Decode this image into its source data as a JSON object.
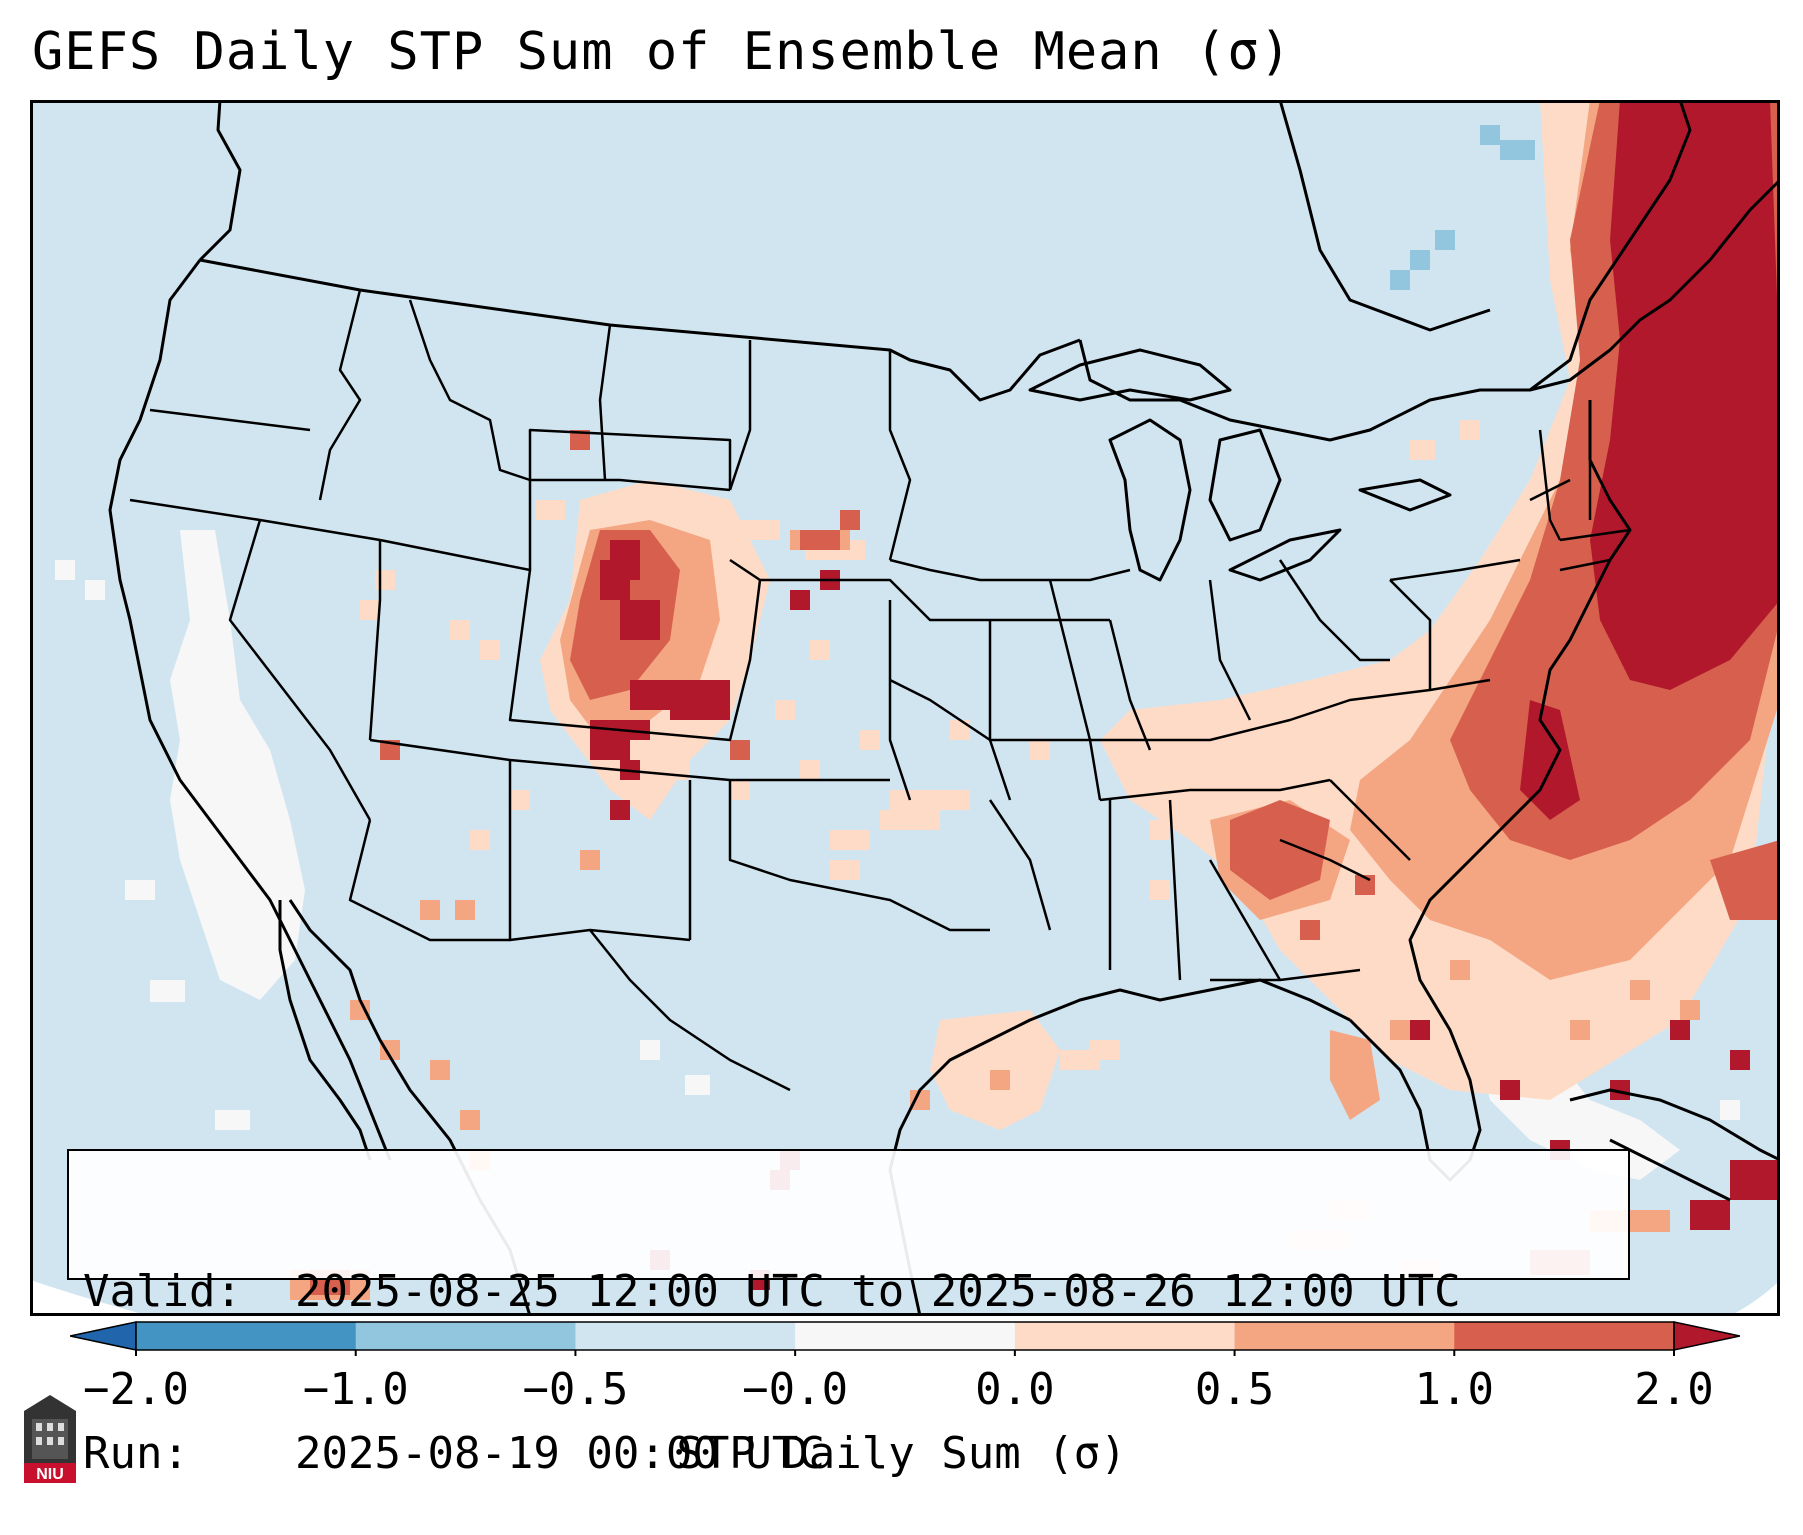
{
  "title": "GEFS Daily STP Sum of Ensemble Mean (σ)",
  "info": {
    "valid_label": "Valid:",
    "valid_value": "2025-08-25 12:00 UTC to 2025-08-26 12:00 UTC",
    "run_label": "Run:",
    "run_value": "2025-08-19 00:00 UTC"
  },
  "colorbar": {
    "label": "STP Daily Sum (σ)",
    "ticks": [
      "−2.0",
      "−1.0",
      "−0.5",
      "−0.0",
      "0.0",
      "0.5",
      "1.0",
      "2.0"
    ],
    "colors": [
      "#2166ac",
      "#4393c3",
      "#92c5de",
      "#d1e5f0",
      "#f7f7f7",
      "#fddbc7",
      "#f4a582",
      "#d6604d",
      "#b2182b"
    ]
  },
  "map": {
    "background_color": "#d1e5f0",
    "region": "Continental United States",
    "anomaly_areas": [
      {
        "area": "Northeast US / New England",
        "level": "> 1.0"
      },
      {
        "area": "Mid-Atlantic coast / Western Atlantic",
        "level": "0.5 to 2.0"
      },
      {
        "area": "Carolinas / Southeast",
        "level": "0.0 to 1.0"
      },
      {
        "area": "Colorado / Wyoming Front Range",
        "level": "0.0 to 2.0"
      },
      {
        "area": "South Texas coast",
        "level": "0.0 to 1.0"
      },
      {
        "area": "California coast / Eastern Pacific",
        "level": "-0.5 to 0.0"
      }
    ]
  },
  "logo": {
    "text": "NIU"
  }
}
